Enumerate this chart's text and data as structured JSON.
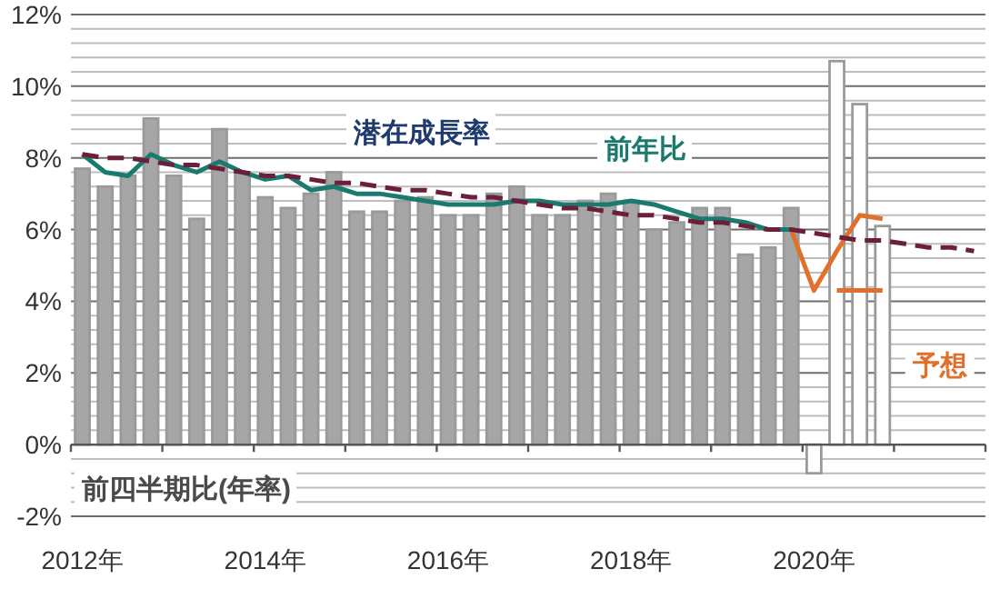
{
  "chart_data": {
    "type": "bar",
    "stacked": true,
    "grid": "y",
    "categories": [
      "2012年",
      null,
      null,
      null,
      null,
      null,
      null,
      null,
      "2014年",
      null,
      null,
      null,
      null,
      null,
      null,
      null,
      "2016年",
      null,
      null,
      null,
      null,
      null,
      null,
      null,
      "2018年",
      null,
      null,
      null,
      null,
      null,
      null,
      null,
      "2020年",
      null,
      null,
      null,
      null,
      null,
      null,
      null
    ],
    "ylim": [
      -2,
      12
    ],
    "yticks": [
      {
        "value": -2,
        "label": "-2%"
      },
      {
        "value": -1.6,
        "label": null
      },
      {
        "value": -1.2,
        "label": null
      },
      {
        "value": -0.8,
        "label": null
      },
      {
        "value": -0.4,
        "label": null
      },
      {
        "value": 0,
        "label": "0%"
      },
      {
        "value": 0.4,
        "label": null
      },
      {
        "value": 0.8,
        "label": null
      },
      {
        "value": 1.2,
        "label": null
      },
      {
        "value": 1.6,
        "label": null
      },
      {
        "value": 2,
        "label": "2%"
      },
      {
        "value": 2.4,
        "label": null
      },
      {
        "value": 2.8,
        "label": null
      },
      {
        "value": 3.2,
        "label": null
      },
      {
        "value": 3.6,
        "label": null
      },
      {
        "value": 4,
        "label": "4%"
      },
      {
        "value": 4.4,
        "label": null
      },
      {
        "value": 4.8,
        "label": null
      },
      {
        "value": 5.2,
        "label": null
      },
      {
        "value": 5.6,
        "label": null
      },
      {
        "value": 6,
        "label": "6%"
      },
      {
        "value": 6.4,
        "label": null
      },
      {
        "value": 6.8,
        "label": null
      },
      {
        "value": 7.2,
        "label": null
      },
      {
        "value": 7.6,
        "label": null
      },
      {
        "value": 8,
        "label": "8%"
      },
      {
        "value": 8.4,
        "label": null
      },
      {
        "value": 8.8,
        "label": null
      },
      {
        "value": 9.2,
        "label": null
      },
      {
        "value": 9.6,
        "label": null
      },
      {
        "value": 10,
        "label": "10%"
      },
      {
        "value": 10.4,
        "label": null
      },
      {
        "value": 10.8,
        "label": null
      },
      {
        "value": 11.2,
        "label": null
      },
      {
        "value": 11.6,
        "label": null
      },
      {
        "value": 12,
        "label": "12%"
      }
    ],
    "series": [
      {
        "name": "前四半期比(年率)",
        "color": "#a6a6a6",
        "values": [
          7.7,
          7.2,
          7.5,
          9.1,
          7.5,
          6.3,
          8.8,
          7.6,
          6.9,
          6.6,
          7.0,
          7.6,
          6.5,
          6.5,
          6.8,
          6.9,
          6.4,
          6.4,
          7.0,
          7.2,
          6.4,
          6.4,
          6.8,
          7.0,
          6.8,
          6.0,
          6.2,
          6.6,
          6.6,
          5.3,
          5.5,
          6.6,
          null,
          null,
          null,
          null,
          null,
          null,
          null,
          null
        ]
      },
      {
        "color": "#ffffff",
        "values": [
          null,
          null,
          null,
          null,
          null,
          null,
          null,
          null,
          null,
          null,
          null,
          null,
          null,
          null,
          null,
          null,
          null,
          null,
          null,
          null,
          null,
          null,
          null,
          null,
          null,
          null,
          null,
          null,
          null,
          null,
          null,
          null,
          -0.8,
          10.7,
          9.5,
          6.1,
          null,
          null,
          null,
          null
        ]
      },
      {
        "name": "前年比",
        "type": "line",
        "color": "#1a7a6e",
        "values": [
          8.1,
          7.6,
          7.5,
          8.1,
          7.8,
          7.6,
          7.9,
          7.6,
          7.4,
          7.5,
          7.1,
          7.2,
          7.0,
          7.0,
          6.9,
          6.8,
          6.7,
          6.7,
          6.7,
          6.8,
          6.8,
          6.7,
          6.7,
          6.7,
          6.8,
          6.7,
          6.5,
          6.3,
          6.3,
          6.2,
          6.0,
          6.0,
          null,
          null,
          null,
          null,
          null,
          null,
          null,
          null
        ]
      },
      {
        "type": "line",
        "color": "#e0702a",
        "values": [
          null,
          null,
          null,
          null,
          null,
          null,
          null,
          null,
          null,
          null,
          null,
          null,
          null,
          null,
          null,
          null,
          null,
          null,
          null,
          null,
          null,
          null,
          null,
          null,
          null,
          null,
          null,
          null,
          null,
          null,
          null,
          6.0,
          4.3,
          5.4,
          6.4,
          6.3,
          null,
          null,
          null,
          null
        ]
      },
      {
        "type": "line",
        "color": "#e0702a",
        "values": [
          null,
          null,
          null,
          null,
          null,
          null,
          null,
          null,
          null,
          null,
          null,
          null,
          null,
          null,
          null,
          null,
          null,
          null,
          null,
          null,
          null,
          null,
          null,
          null,
          null,
          null,
          null,
          null,
          null,
          null,
          null,
          null,
          null,
          4.3,
          4.3,
          4.3,
          null,
          null,
          null,
          null
        ]
      },
      {
        "name": "潜在成長率",
        "type": "line",
        "color": "#6b1f3a",
        "line_style": "dashed",
        "values": [
          8.1,
          8.0,
          8.0,
          7.9,
          7.8,
          7.8,
          7.7,
          7.6,
          7.5,
          7.5,
          7.4,
          7.3,
          7.3,
          7.2,
          7.1,
          7.1,
          7.0,
          6.9,
          6.9,
          6.8,
          6.7,
          6.6,
          6.6,
          6.5,
          6.4,
          6.4,
          6.3,
          6.2,
          6.2,
          6.1,
          6.0,
          6.0,
          5.9,
          5.8,
          5.7,
          5.7,
          5.6,
          5.5,
          5.5,
          5.4
        ]
      }
    ],
    "annotations": [
      "予想"
    ]
  }
}
